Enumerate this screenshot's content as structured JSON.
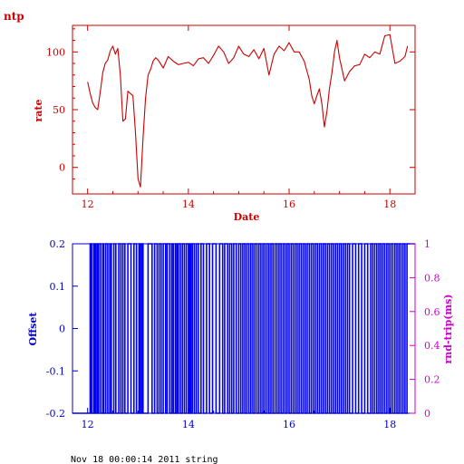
{
  "corner_label": "ntp",
  "footer": "Nov 18 00:00:14 2011 string",
  "colors": {
    "rate": "#cc0000",
    "offset_axis": "#0000cc",
    "offset_trace": "#0000ff",
    "rtt_axis": "#cc00cc"
  },
  "chart_data": [
    {
      "type": "line",
      "xlabel": "Date",
      "ylabel": "rate",
      "xlim": [
        11.7,
        18.5
      ],
      "ylim": [
        -23,
        123
      ],
      "x_ticks": [
        "12",
        "14",
        "16",
        "18"
      ],
      "y_ticks": [
        "0",
        "50",
        "100"
      ],
      "grid": false,
      "series": [
        {
          "x": [
            12.0,
            12.05,
            12.1,
            12.15,
            12.2,
            12.25,
            12.3,
            12.35,
            12.4,
            12.45,
            12.5,
            12.55,
            12.6,
            12.65,
            12.7,
            12.75,
            12.8,
            12.85,
            12.9,
            12.95,
            13.0,
            13.05,
            13.1,
            13.15,
            13.2,
            13.25,
            13.3,
            13.35,
            13.4,
            13.5,
            13.6,
            13.7,
            13.8,
            13.9,
            14.0,
            14.1,
            14.2,
            14.3,
            14.4,
            14.5,
            14.6,
            14.7,
            14.8,
            14.9,
            15.0,
            15.1,
            15.2,
            15.3,
            15.4,
            15.5,
            15.6,
            15.7,
            15.8,
            15.9,
            16.0,
            16.1,
            16.2,
            16.3,
            16.4,
            16.45,
            16.5,
            16.55,
            16.6,
            16.65,
            16.7,
            16.75,
            16.8,
            16.85,
            16.9,
            16.95,
            17.0,
            17.1,
            17.2,
            17.3,
            17.4,
            17.5,
            17.6,
            17.7,
            17.8,
            17.9,
            18.0,
            18.1,
            18.2,
            18.3,
            18.35
          ],
          "y": [
            74,
            64,
            56,
            52,
            50,
            65,
            82,
            90,
            93,
            101,
            105,
            98,
            103,
            80,
            40,
            42,
            66,
            64,
            62,
            30,
            -10,
            -17,
            25,
            60,
            80,
            85,
            92,
            95,
            93,
            86,
            96,
            92,
            89,
            90,
            91,
            88,
            94,
            95,
            90,
            97,
            105,
            100,
            90,
            95,
            105,
            98,
            96,
            102,
            94,
            103,
            80,
            98,
            105,
            101,
            108,
            100,
            100,
            92,
            76,
            62,
            55,
            62,
            68,
            55,
            35,
            48,
            68,
            82,
            100,
            110,
            95,
            75,
            83,
            88,
            89,
            98,
            95,
            100,
            98,
            114,
            115,
            90,
            92,
            96,
            105
          ]
        }
      ]
    },
    {
      "type": "line",
      "xlabel": "",
      "ylabel": "Offset",
      "y2label": "rnd-trip(ms)",
      "xlim": [
        11.7,
        18.5
      ],
      "ylim": [
        -0.2,
        0.2
      ],
      "y2lim": [
        0,
        1
      ],
      "x_ticks": [
        "12",
        "14",
        "16",
        "18"
      ],
      "y_ticks": [
        "-0.2",
        "-0.1",
        "0",
        "0.1",
        "0.2"
      ],
      "y2_ticks": [
        "0",
        "0.2",
        "0.4",
        "0.6",
        "0.8",
        "1"
      ],
      "grid": false,
      "series": [
        {
          "transitions_x": [
            12.05,
            12.08,
            12.12,
            12.14,
            12.17,
            12.2,
            12.22,
            12.26,
            12.3,
            12.32,
            12.36,
            12.4,
            12.44,
            12.47,
            12.52,
            12.56,
            12.62,
            12.66,
            12.7,
            12.74,
            12.8,
            12.86,
            12.92,
            12.97,
            13.02,
            13.05,
            13.08,
            13.1,
            13.2,
            13.28,
            13.33,
            13.38,
            13.42,
            13.46,
            13.5,
            13.55,
            13.58,
            13.63,
            13.67,
            13.7,
            13.74,
            13.77,
            13.8,
            13.84,
            13.88,
            13.92,
            13.96,
            14.0,
            14.02,
            14.05,
            14.08,
            14.12,
            14.16,
            14.2,
            14.25,
            14.3,
            14.36,
            14.42,
            14.48,
            14.55,
            14.62,
            14.68,
            14.72,
            14.78,
            14.82,
            14.86,
            14.9,
            14.95,
            15.0,
            15.04,
            15.08,
            15.12,
            15.16,
            15.2,
            15.24,
            15.28,
            15.32,
            15.36,
            15.4,
            15.44,
            15.48,
            15.52,
            15.56,
            15.6,
            15.64,
            15.68,
            15.72,
            15.76,
            15.8,
            15.84,
            15.88,
            15.92,
            15.96,
            16.0,
            16.04,
            16.08,
            16.12,
            16.16,
            16.2,
            16.24,
            16.28,
            16.32,
            16.36,
            16.4,
            16.44,
            16.48,
            16.52,
            16.56,
            16.6,
            16.64,
            16.68,
            16.72,
            16.76,
            16.8,
            16.84,
            16.88,
            16.92,
            16.96,
            17.0,
            17.04,
            17.08,
            17.12,
            17.16,
            17.2,
            17.26,
            17.32,
            17.38,
            17.44,
            17.5,
            17.56,
            17.62,
            17.66,
            17.7,
            17.74,
            17.78,
            17.82,
            17.86,
            17.9,
            17.94,
            17.98,
            18.02,
            18.06,
            18.1,
            18.14,
            18.18,
            18.22,
            18.26,
            18.3,
            18.34
          ]
        }
      ]
    }
  ]
}
